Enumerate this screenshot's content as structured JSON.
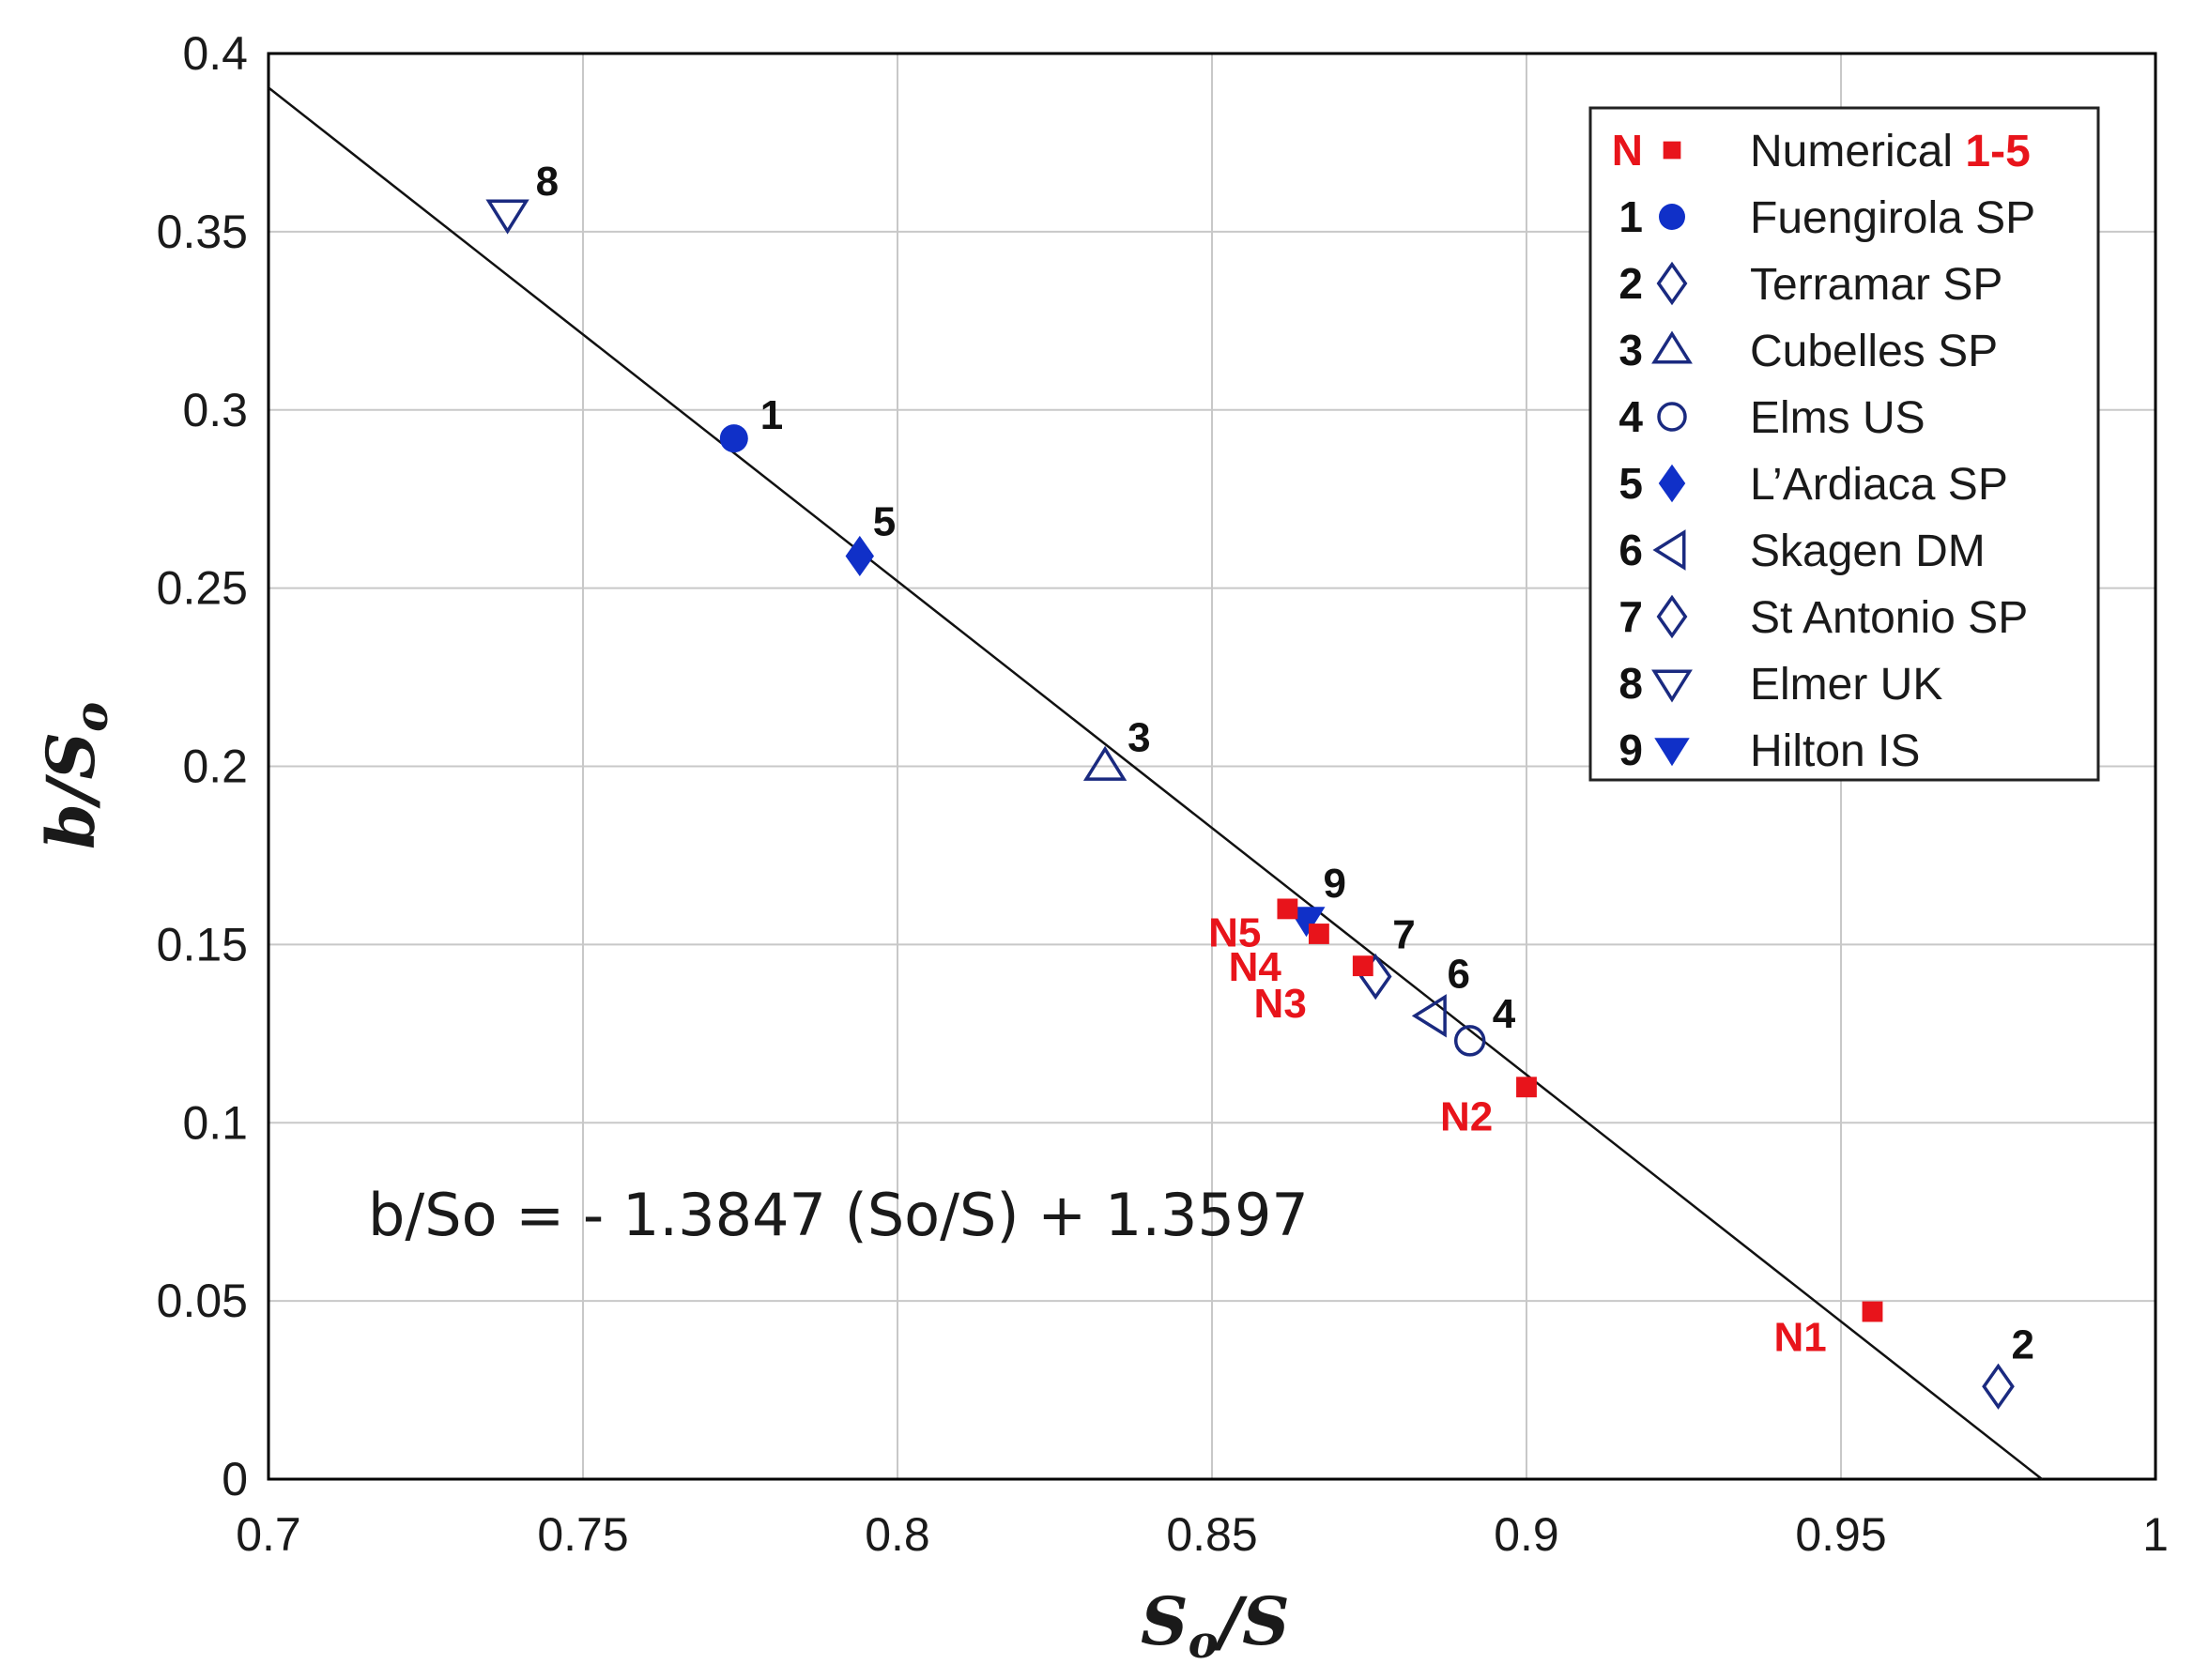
{
  "chart_data": {
    "type": "scatter",
    "title": "",
    "xlabel": {
      "main": "S",
      "sub": "o",
      "rest": "/S"
    },
    "ylabel": {
      "main": "b/S",
      "sub": "o"
    },
    "xlim": [
      0.7,
      1.0
    ],
    "ylim": [
      0,
      0.4
    ],
    "grid": true,
    "x_ticks": [
      0.7,
      0.75,
      0.8,
      0.85,
      0.9,
      0.95,
      1.0
    ],
    "x_tick_labels": [
      "0.7",
      "0.75",
      "0.8",
      "0.85",
      "0.9",
      "0.95",
      "1"
    ],
    "y_ticks": [
      0,
      0.05,
      0.1,
      0.15,
      0.2,
      0.25,
      0.3,
      0.35,
      0.4
    ],
    "y_tick_labels": [
      "0",
      "0.05",
      "0.1",
      "0.15",
      "0.2",
      "0.25",
      "0.3",
      "0.35",
      "0.4"
    ],
    "fit_line": {
      "equation_label": "b/So = - 1.3847 (So/S) + 1.3597",
      "slope": -1.3847,
      "intercept": 1.3597,
      "x_range": [
        0.7,
        0.982
      ]
    },
    "legend_position": "top-right",
    "series": [
      {
        "id": "N",
        "name": "Numerical",
        "name_suffix": "1-5",
        "legend_num": "N",
        "marker": "square-filled",
        "color": "#e8141b",
        "points": [
          {
            "label": "N1",
            "x": 0.955,
            "y": 0.047
          },
          {
            "label": "N2",
            "x": 0.9,
            "y": 0.11
          },
          {
            "label": "N3",
            "x": 0.874,
            "y": 0.144
          },
          {
            "label": "N4",
            "x": 0.867,
            "y": 0.153
          },
          {
            "label": "N5",
            "x": 0.862,
            "y": 0.16
          }
        ]
      },
      {
        "id": "1",
        "name": "Fuengirola SP",
        "legend_num": "1",
        "marker": "circle-filled",
        "color": "#1030c8",
        "points": [
          {
            "label": "1",
            "x": 0.774,
            "y": 0.292
          }
        ]
      },
      {
        "id": "2",
        "name": "Terramar SP",
        "legend_num": "2",
        "marker": "diamond-open",
        "color": "#1a2a80",
        "points": [
          {
            "label": "2",
            "x": 0.975,
            "y": 0.026
          }
        ]
      },
      {
        "id": "3",
        "name": "Cubelles SP",
        "legend_num": "3",
        "marker": "triangle-up-open",
        "color": "#1a2a80",
        "points": [
          {
            "label": "3",
            "x": 0.833,
            "y": 0.2
          }
        ]
      },
      {
        "id": "4",
        "name": "Elms US",
        "legend_num": "4",
        "marker": "circle-open",
        "color": "#1a2a80",
        "points": [
          {
            "label": "4",
            "x": 0.891,
            "y": 0.123
          }
        ]
      },
      {
        "id": "5",
        "name": "L’Ardiaca SP",
        "legend_num": "5",
        "marker": "diamond-filled",
        "color": "#1030c8",
        "points": [
          {
            "label": "5",
            "x": 0.794,
            "y": 0.259
          }
        ]
      },
      {
        "id": "6",
        "name": "Skagen DM",
        "legend_num": "6",
        "marker": "triangle-left-open",
        "color": "#1a2a80",
        "points": [
          {
            "label": "6",
            "x": 0.885,
            "y": 0.13
          }
        ]
      },
      {
        "id": "7",
        "name": "St Antonio SP",
        "legend_num": "7",
        "marker": "diamond-open",
        "color": "#1a2a80",
        "points": [
          {
            "label": "7",
            "x": 0.876,
            "y": 0.141
          }
        ]
      },
      {
        "id": "8",
        "name": "Elmer UK",
        "legend_num": "8",
        "marker": "triangle-down-open",
        "color": "#1a2a80",
        "points": [
          {
            "label": "8",
            "x": 0.738,
            "y": 0.355
          }
        ]
      },
      {
        "id": "9",
        "name": "Hilton IS",
        "legend_num": "9",
        "marker": "triangle-down-filled",
        "color": "#1030c8",
        "points": [
          {
            "label": "9",
            "x": 0.865,
            "y": 0.157
          }
        ]
      }
    ]
  }
}
